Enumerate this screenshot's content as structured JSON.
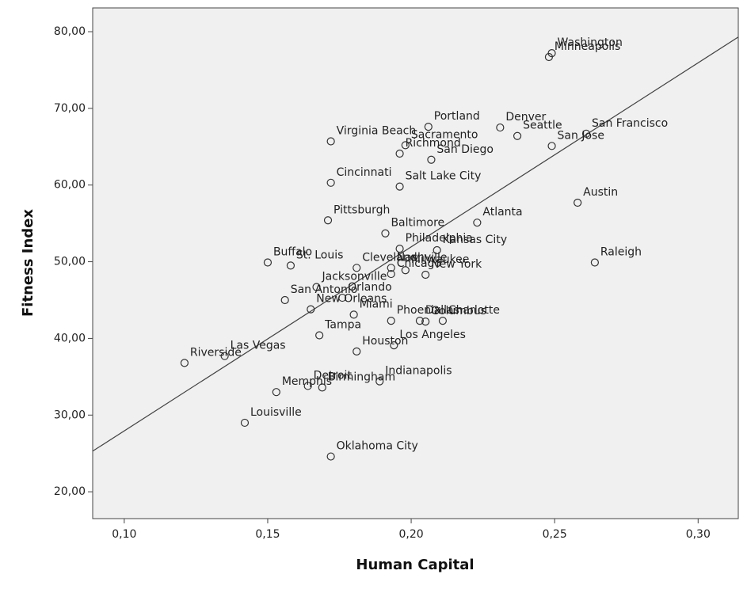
{
  "chart_data": {
    "type": "scatter",
    "x_label": "Human Capital",
    "y_label": "Fitness Index",
    "xlim": [
      0.089,
      0.314
    ],
    "ylim": [
      16.5,
      83.1
    ],
    "xticks": [
      {
        "value": 0.1,
        "label": "0,10"
      },
      {
        "value": 0.15,
        "label": "0,15"
      },
      {
        "value": 0.2,
        "label": "0,20"
      },
      {
        "value": 0.25,
        "label": "0,25"
      },
      {
        "value": 0.3,
        "label": "0,30"
      }
    ],
    "yticks": [
      {
        "value": 20,
        "label": "20,00"
      },
      {
        "value": 30,
        "label": "30,00"
      },
      {
        "value": 40,
        "label": "40,00"
      },
      {
        "value": 50,
        "label": "50,00"
      },
      {
        "value": 60,
        "label": "60,00"
      },
      {
        "value": 70,
        "label": "70,00"
      },
      {
        "value": 80,
        "label": "80,00"
      }
    ],
    "labels": [
      "Washington",
      "Minneapolis",
      "Portland",
      "Denver",
      "Seattle",
      "San Francisco",
      "San Jose",
      "Virginia Beach",
      "Sacramento",
      "Richmond",
      "San Diego",
      "Cincinnati",
      "Salt Lake City",
      "Austin",
      "Pittsburgh",
      "Atlanta",
      "Baltimore",
      "Philadelphia",
      "Kansas City",
      "Raleigh",
      "Buffalo",
      "St. Louis",
      "Cleveland",
      "Chicago",
      "Milwaukee",
      "New York",
      "Jacksonville",
      "Orlando",
      "Nashville",
      "San Antonio",
      "New Orleans",
      "Miami",
      "Phoenix",
      "Dallas",
      "Columbus",
      "Charlotte",
      "Tampa",
      "Houston",
      "Los Angeles",
      "Las Vegas",
      "Riverside",
      "Indianapolis",
      "Detroit",
      "Birmingham",
      "Memphis",
      "Louisville",
      "Oklahoma City"
    ],
    "x": [
      0.249,
      0.248,
      0.206,
      0.231,
      0.237,
      0.261,
      0.249,
      0.172,
      0.198,
      0.196,
      0.207,
      0.172,
      0.196,
      0.258,
      0.171,
      0.223,
      0.191,
      0.196,
      0.209,
      0.264,
      0.15,
      0.158,
      0.181,
      0.193,
      0.198,
      0.205,
      0.167,
      0.176,
      0.193,
      0.156,
      0.165,
      0.18,
      0.193,
      0.203,
      0.205,
      0.211,
      0.168,
      0.181,
      0.194,
      0.135,
      0.121,
      0.189,
      0.164,
      0.169,
      0.153,
      0.142,
      0.172
    ],
    "y": [
      77.2,
      76.7,
      67.6,
      67.5,
      66.4,
      66.7,
      65.1,
      65.7,
      65.2,
      64.1,
      63.3,
      60.3,
      59.8,
      57.7,
      55.4,
      55.1,
      53.7,
      51.7,
      51.5,
      49.9,
      49.9,
      49.5,
      49.2,
      48.4,
      48.9,
      48.3,
      46.7,
      45.3,
      49.2,
      45.0,
      43.8,
      43.1,
      42.3,
      42.3,
      42.2,
      42.3,
      40.4,
      38.3,
      39.1,
      37.7,
      36.8,
      34.4,
      33.8,
      33.6,
      33.0,
      29.0,
      24.6
    ],
    "fit_line": {
      "x": [
        0.089,
        0.314
      ],
      "y": [
        25.3,
        79.3
      ]
    },
    "marker_color": "#333333",
    "plot_background": "#f0f0f0"
  }
}
